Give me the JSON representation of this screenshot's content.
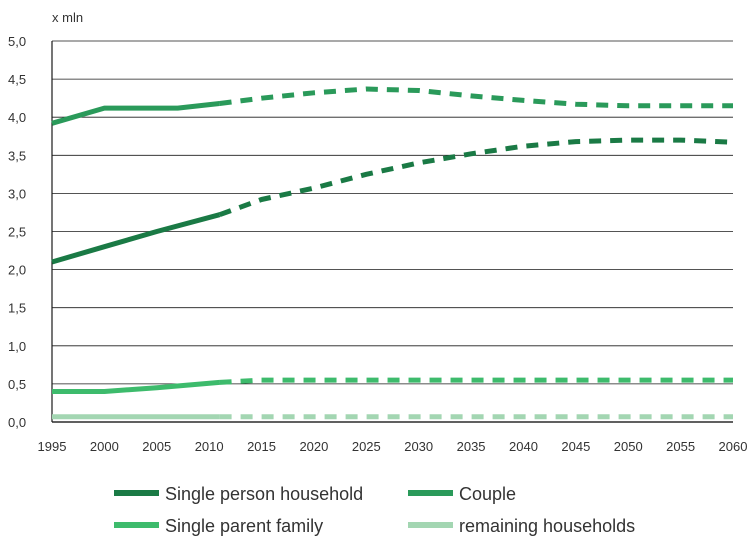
{
  "chart_data": {
    "type": "line",
    "title": "",
    "xlabel": "",
    "ylabel": "",
    "unit_label": "x mln",
    "xlim": [
      1995,
      2060
    ],
    "ylim": [
      0,
      5
    ],
    "grid": true,
    "legend_position": "bottom",
    "x_ticks": [
      "1995",
      "2000",
      "2005",
      "2010",
      "2015",
      "2020",
      "2025",
      "2030",
      "2035",
      "2040",
      "2045",
      "2050",
      "2055",
      "2060"
    ],
    "y_ticks": [
      "0,0",
      "0,5",
      "1,0",
      "1,5",
      "2,0",
      "2,5",
      "3,0",
      "3,5",
      "4,0",
      "4,5",
      "5,0"
    ],
    "series": [
      {
        "name": "Single person household",
        "color": "#1a7a45",
        "actual": {
          "x": [
            1995,
            2000,
            2005,
            2011
          ],
          "y": [
            2.1,
            2.3,
            2.5,
            2.72
          ]
        },
        "forecast": {
          "x": [
            2011,
            2015,
            2020,
            2025,
            2030,
            2035,
            2040,
            2045,
            2050,
            2055,
            2060
          ],
          "y": [
            2.72,
            2.92,
            3.07,
            3.25,
            3.4,
            3.52,
            3.62,
            3.68,
            3.7,
            3.7,
            3.67
          ]
        }
      },
      {
        "name": "Couple",
        "color": "#2a9a5a",
        "actual": {
          "x": [
            1995,
            2000,
            2007,
            2011
          ],
          "y": [
            3.92,
            4.12,
            4.12,
            4.18
          ]
        },
        "forecast": {
          "x": [
            2011,
            2015,
            2020,
            2025,
            2030,
            2035,
            2040,
            2045,
            2050,
            2055,
            2060
          ],
          "y": [
            4.18,
            4.25,
            4.32,
            4.37,
            4.35,
            4.28,
            4.22,
            4.17,
            4.15,
            4.15,
            4.15
          ]
        }
      },
      {
        "name": "Single parent family",
        "color": "#3dbb6c",
        "actual": {
          "x": [
            1995,
            2000,
            2005,
            2011
          ],
          "y": [
            0.4,
            0.4,
            0.45,
            0.52
          ]
        },
        "forecast": {
          "x": [
            2011,
            2015,
            2020,
            2025,
            2030,
            2035,
            2040,
            2045,
            2050,
            2055,
            2060
          ],
          "y": [
            0.52,
            0.55,
            0.55,
            0.55,
            0.55,
            0.55,
            0.55,
            0.55,
            0.55,
            0.55,
            0.55
          ]
        }
      },
      {
        "name": "remaining households",
        "color": "#a3d6b2",
        "actual": {
          "x": [
            1995,
            2011
          ],
          "y": [
            0.07,
            0.07
          ]
        },
        "forecast": {
          "x": [
            2011,
            2060
          ],
          "y": [
            0.07,
            0.07
          ]
        }
      }
    ]
  }
}
